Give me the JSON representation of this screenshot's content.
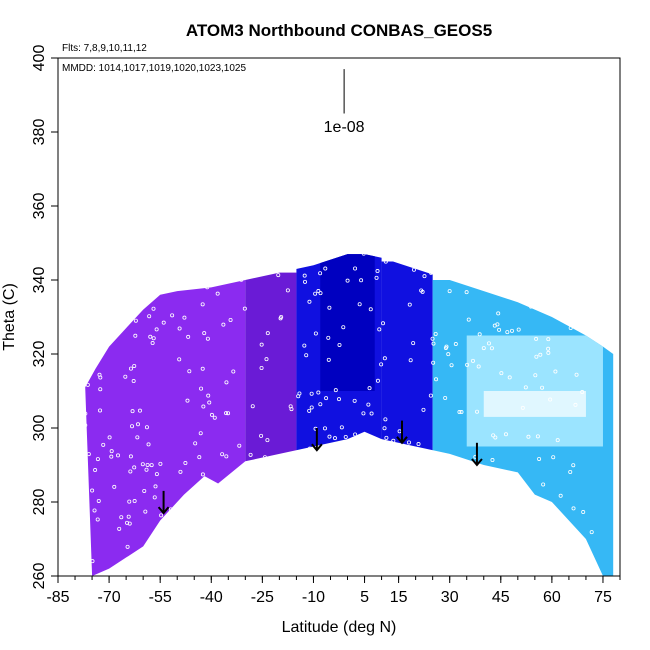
{
  "chart_data": {
    "type": "heatmap",
    "title": "ATOM3 Northbound CONBAS_GEOS5",
    "flights_note": "Flts: 7,8,9,10,11,12",
    "dates_note": "MMDD: 1014,1017,1019,1020,1023,1025",
    "xlabel": "Latitude (deg N)",
    "ylabel": "Theta (C)",
    "xlim": [
      -85,
      80
    ],
    "ylim": [
      260,
      400
    ],
    "x_ticks": [
      "-85",
      "-70",
      "-55",
      "-40",
      "-25",
      "-10",
      "5",
      "15",
      "30",
      "45",
      "60",
      "75"
    ],
    "y_ticks": [
      "260",
      "280",
      "300",
      "320",
      "340",
      "360",
      "380",
      "400"
    ],
    "contour_label": "1e-08",
    "grid": false,
    "legend": "none",
    "colors": {
      "purple": "#8B2BF0",
      "dark_purple": "#6A1BD6",
      "blue": "#1010E0",
      "dark_blue": "#0000C0",
      "sky": "#36B8F5",
      "light_sky": "#9BE4FF",
      "pale": "#E0F7FF"
    },
    "upper_boundary": [
      [
        -77,
        311
      ],
      [
        -74,
        316
      ],
      [
        -70,
        322
      ],
      [
        -65,
        327
      ],
      [
        -60,
        332
      ],
      [
        -55,
        336
      ],
      [
        -50,
        337
      ],
      [
        -40,
        338
      ],
      [
        -30,
        340
      ],
      [
        -20,
        342
      ],
      [
        -10,
        344
      ],
      [
        0,
        347
      ],
      [
        5,
        347
      ],
      [
        10,
        346
      ],
      [
        20,
        343
      ],
      [
        30,
        340
      ],
      [
        40,
        337
      ],
      [
        50,
        334
      ],
      [
        60,
        330
      ],
      [
        70,
        325
      ],
      [
        75,
        322
      ],
      [
        78,
        320
      ]
    ],
    "lower_boundary": [
      [
        -75,
        260
      ],
      [
        -70,
        262
      ],
      [
        -60,
        268
      ],
      [
        -55,
        275
      ],
      [
        -48,
        282
      ],
      [
        -42,
        287
      ],
      [
        -38,
        285
      ],
      [
        -30,
        291
      ],
      [
        -20,
        293
      ],
      [
        -10,
        295
      ],
      [
        0,
        297
      ],
      [
        5,
        299
      ],
      [
        10,
        297
      ],
      [
        20,
        295
      ],
      [
        30,
        293
      ],
      [
        40,
        290
      ],
      [
        50,
        288
      ],
      [
        55,
        282
      ],
      [
        60,
        280
      ],
      [
        65,
        275
      ],
      [
        70,
        270
      ],
      [
        75,
        260
      ],
      [
        78,
        260
      ]
    ],
    "arrows": [
      [
        -54,
        283
      ],
      [
        -9,
        300
      ],
      [
        16,
        302
      ],
      [
        38,
        296
      ]
    ],
    "regions": [
      {
        "x": [
          -80,
          -30
        ],
        "y": [
          260,
          340
        ],
        "color": "purple"
      },
      {
        "x": [
          -30,
          -15
        ],
        "y": [
          285,
          342
        ],
        "color": "dark_purple"
      },
      {
        "x": [
          -15,
          10
        ],
        "y": [
          290,
          348
        ],
        "color": "blue"
      },
      {
        "x": [
          -8,
          8
        ],
        "y": [
          310,
          348
        ],
        "color": "dark_blue"
      },
      {
        "x": [
          10,
          25
        ],
        "y": [
          290,
          345
        ],
        "color": "blue"
      },
      {
        "x": [
          25,
          80
        ],
        "y": [
          260,
          340
        ],
        "color": "sky"
      },
      {
        "x": [
          35,
          75
        ],
        "y": [
          295,
          325
        ],
        "color": "light_sky"
      },
      {
        "x": [
          40,
          70
        ],
        "y": [
          303,
          310
        ],
        "color": "pale"
      }
    ]
  }
}
